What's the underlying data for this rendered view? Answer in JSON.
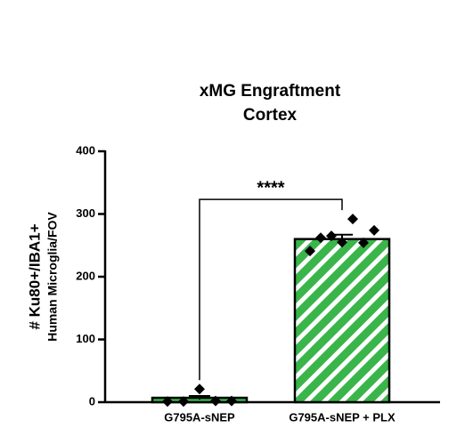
{
  "chart_data": {
    "type": "bar",
    "title": [
      "xMG Engraftment",
      "Cortex"
    ],
    "y_label": [
      "# Ku80+/IBA1+",
      "Human Microglia/FOV"
    ],
    "categories": [
      "G795A-sNEP",
      "G795A-sNEP + PLX"
    ],
    "values": [
      7,
      260
    ],
    "errors": [
      3,
      7
    ],
    "points": [
      [
        1,
        1,
        21,
        2,
        2
      ],
      [
        241,
        262,
        265,
        255,
        292,
        254,
        274
      ]
    ],
    "color": "#39b54a",
    "hatch": [
      false,
      true
    ],
    "ylim": [
      0,
      400
    ],
    "yticks": [
      0,
      100,
      200,
      300,
      400
    ],
    "significance": {
      "label": "****",
      "between": [
        0,
        1
      ]
    }
  }
}
